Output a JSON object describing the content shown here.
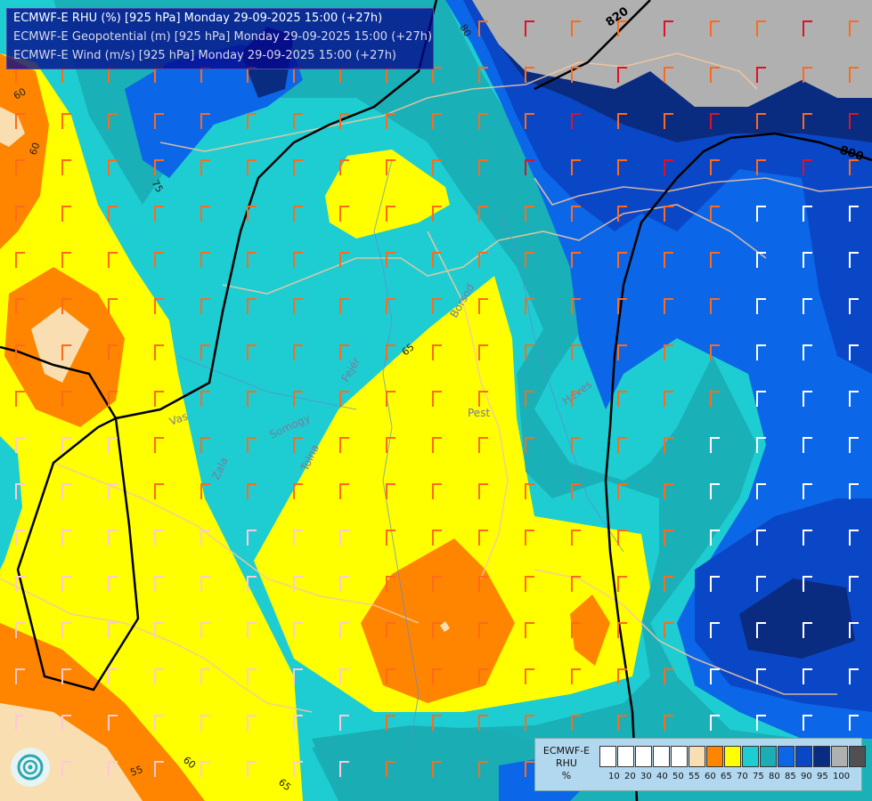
{
  "title": {
    "line1": "ECMWF-E RHU (%) [925 hPa] Monday 29-09-2025 15:00 (+27h)",
    "line2": "ECMWF-E Geopotential (m) [925 hPa] Monday 29-09-2025 15:00 (+27h)",
    "line3": "ECMWF-E Wind (m/s) [925 hPa] Monday 29-09-2025 15:00 (+27h)"
  },
  "legend": {
    "model": "ECMWF-E",
    "variable": "RHU",
    "unit": "%",
    "colors": [
      "#ffffff",
      "#ffffff",
      "#ffffff",
      "#ffffff",
      "#ffffff",
      "#f8deb0",
      "#ff8500",
      "#ffff00",
      "#1ecdd2",
      "#1aaeb4",
      "#0c66e8",
      "#0a47c6",
      "#0a2c80",
      "#b0b0b0",
      "#505050"
    ],
    "ticks": [
      "10",
      "20",
      "30",
      "40",
      "50",
      "55",
      "60",
      "65",
      "70",
      "75",
      "80",
      "85",
      "90",
      "95",
      "100"
    ]
  },
  "contour_labels": {
    "geopotential": [
      "820",
      "800"
    ],
    "rhu": [
      "60",
      "75",
      "65",
      "60",
      "55",
      "60",
      "65",
      "80"
    ]
  },
  "place_labels": [
    "Vas",
    "Zala",
    "Somogy",
    "Tolna",
    "Fejér",
    "Pest",
    "Heves",
    "Borsod"
  ],
  "colors": {
    "band55": "#f8deb0",
    "band60": "#ff8500",
    "band65": "#ffff00",
    "band70": "#1ecdd2",
    "band75": "#1aaeb4",
    "band80": "#0c66e8",
    "band85": "#0a47c6",
    "band90": "#0a2c80",
    "band95": "#b0b0b0",
    "wind_orange": "#ff6a1a",
    "wind_red": "#e0102a",
    "wind_white": "#ffffff",
    "wind_pink": "#ffc8d8"
  }
}
